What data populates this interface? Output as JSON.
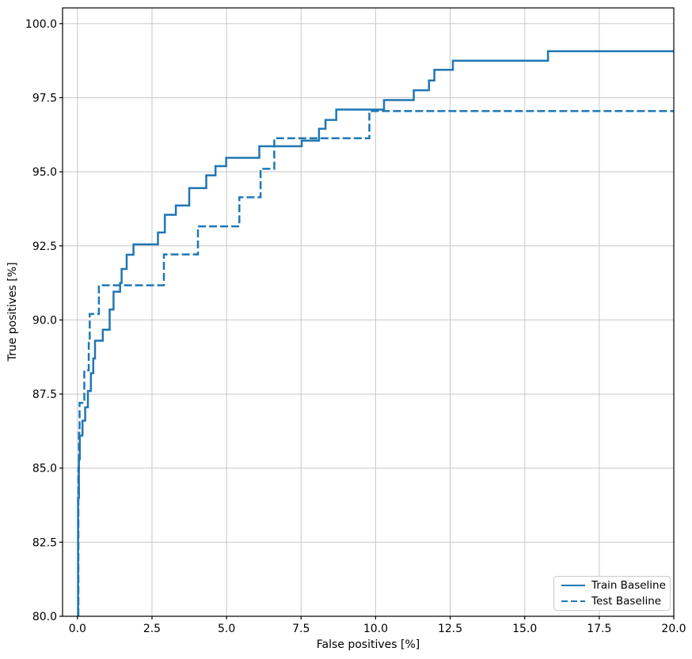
{
  "chart_data": {
    "type": "line",
    "subtype": "step-post",
    "title": "",
    "xlabel": "False positives [%]",
    "ylabel": "True positives [%]",
    "xlim": [
      -0.5,
      20.0
    ],
    "ylim": [
      80.0,
      100.53
    ],
    "xticks": [
      0,
      2.5,
      5,
      7.5,
      10,
      12.5,
      15,
      17.5,
      20
    ],
    "xtick_labels": [
      "0.0",
      "2.5",
      "5.0",
      "7.5",
      "10.0",
      "12.5",
      "15.0",
      "17.5",
      "20.0"
    ],
    "yticks": [
      80,
      82.5,
      85,
      87.5,
      90,
      92.5,
      95,
      97.5,
      100
    ],
    "ytick_labels": [
      "80.0",
      "82.5",
      "85.0",
      "87.5",
      "90.0",
      "92.5",
      "95.0",
      "97.5",
      "100.0"
    ],
    "grid": true,
    "grid_color": "#c8c8c8",
    "spine_color": "#000000",
    "accent_color": "#1f77b4",
    "legend_position": "lower right",
    "series": [
      {
        "name": "Train Baseline",
        "style": "solid",
        "color": "#1f77b4",
        "steps": [
          [
            0.02,
            84.0
          ],
          [
            0.05,
            85.3
          ],
          [
            0.08,
            86.1
          ],
          [
            0.17,
            86.6
          ],
          [
            0.26,
            87.05
          ],
          [
            0.35,
            87.6
          ],
          [
            0.45,
            88.2
          ],
          [
            0.53,
            88.7
          ],
          [
            0.59,
            89.3
          ],
          [
            0.85,
            89.67
          ],
          [
            1.08,
            90.35
          ],
          [
            1.21,
            90.95
          ],
          [
            1.43,
            91.25
          ],
          [
            1.48,
            91.72
          ],
          [
            1.65,
            92.2
          ],
          [
            1.88,
            92.55
          ],
          [
            2.7,
            92.95
          ],
          [
            2.93,
            93.55
          ],
          [
            3.3,
            93.86
          ],
          [
            3.75,
            94.45
          ],
          [
            4.32,
            94.88
          ],
          [
            4.63,
            95.19
          ],
          [
            4.99,
            95.47
          ],
          [
            6.1,
            95.86
          ],
          [
            7.52,
            96.05
          ],
          [
            8.1,
            96.45
          ],
          [
            8.32,
            96.75
          ],
          [
            8.68,
            97.1
          ],
          [
            10.28,
            97.42
          ],
          [
            11.28,
            97.75
          ],
          [
            11.79,
            98.08
          ],
          [
            11.97,
            98.44
          ],
          [
            12.59,
            98.75
          ],
          [
            15.78,
            99.07
          ]
        ],
        "end_x": 20.0
      },
      {
        "name": "Test Baseline",
        "style": "dashed",
        "color": "#1f77b4",
        "steps": [
          [
            0.03,
            85.0
          ],
          [
            0.05,
            86.2
          ],
          [
            0.07,
            87.2
          ],
          [
            0.23,
            88.3
          ],
          [
            0.38,
            89.3
          ],
          [
            0.41,
            90.2
          ],
          [
            0.72,
            91.17
          ],
          [
            2.9,
            92.21
          ],
          [
            4.04,
            93.16
          ],
          [
            5.43,
            94.14
          ],
          [
            6.14,
            95.1
          ],
          [
            6.6,
            96.13
          ],
          [
            9.79,
            97.05
          ]
        ],
        "end_x": 20.0
      }
    ]
  }
}
